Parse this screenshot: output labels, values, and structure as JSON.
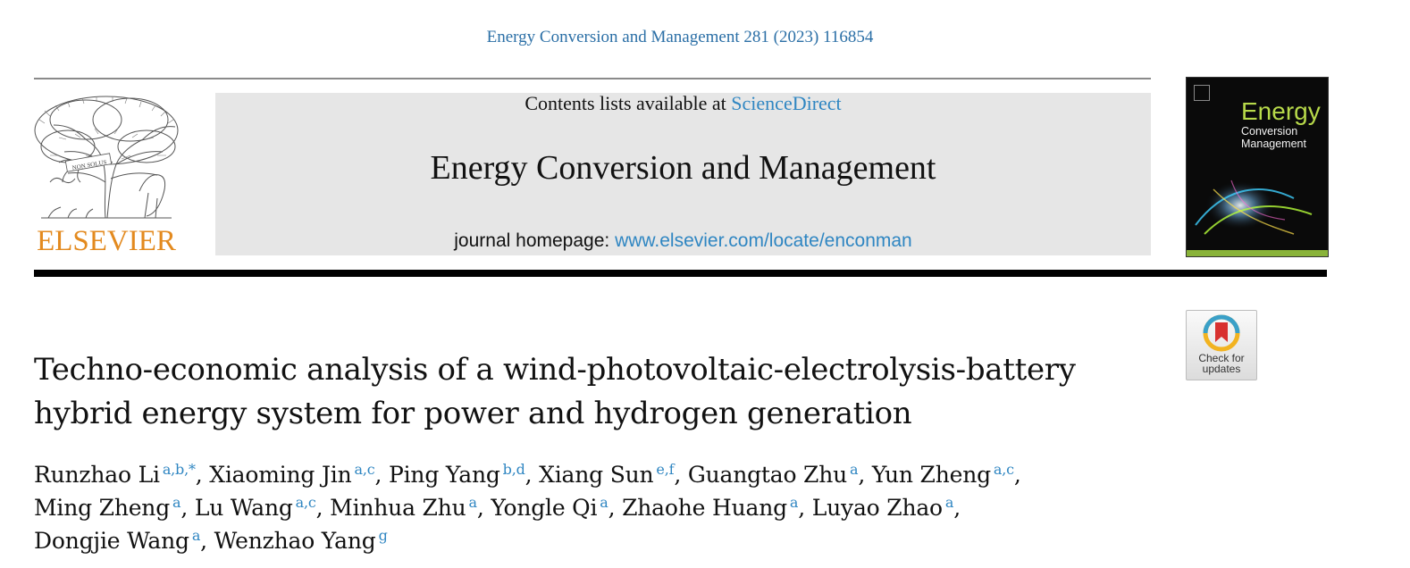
{
  "citation": "Energy Conversion and Management 281 (2023) 116854",
  "header": {
    "publisher_wordmark": "ELSEVIER",
    "contents_prefix": "Contents lists available at ",
    "contents_link": "ScienceDirect",
    "journal_name": "Energy Conversion and Management",
    "homepage_prefix": "journal homepage: ",
    "homepage_link": "www.elsevier.com/locate/enconman"
  },
  "cover": {
    "line1": "Energy",
    "line2": "Conversion",
    "line3": "Management"
  },
  "check_for_updates": {
    "line1": "Check for",
    "line2": "updates"
  },
  "article": {
    "title_line1": "Techno-economic analysis of a wind-photovoltaic-electrolysis-battery",
    "title_line2": "hybrid energy system for power and hydrogen generation",
    "authors_lines": [
      [
        {
          "name": "Runzhao Li",
          "aff": "a,b,*",
          "sep": ", "
        },
        {
          "name": "Xiaoming Jin",
          "aff": "a,c",
          "sep": ", "
        },
        {
          "name": "Ping Yang",
          "aff": "b,d",
          "sep": ", "
        },
        {
          "name": "Xiang Sun",
          "aff": "e,f",
          "sep": ", "
        },
        {
          "name": "Guangtao Zhu",
          "aff": "a",
          "sep": ", "
        },
        {
          "name": "Yun Zheng",
          "aff": "a,c",
          "sep": ","
        }
      ],
      [
        {
          "name": "Ming Zheng",
          "aff": "a",
          "sep": ", "
        },
        {
          "name": "Lu Wang",
          "aff": "a,c",
          "sep": ", "
        },
        {
          "name": "Minhua Zhu",
          "aff": "a",
          "sep": ", "
        },
        {
          "name": "Yongle Qi",
          "aff": "a",
          "sep": ", "
        },
        {
          "name": "Zhaohe Huang",
          "aff": "a",
          "sep": ", "
        },
        {
          "name": "Luyao Zhao",
          "aff": "a",
          "sep": ","
        }
      ],
      [
        {
          "name": "Dongjie Wang",
          "aff": "a",
          "sep": ", "
        },
        {
          "name": "Wenzhao Yang",
          "aff": "g",
          "sep": ""
        }
      ]
    ]
  },
  "colors": {
    "link": "#2f86c2",
    "elsevier_orange": "#e38a1f",
    "banner_gray": "#e6e6e6",
    "cover_green": "#b7d94a"
  }
}
